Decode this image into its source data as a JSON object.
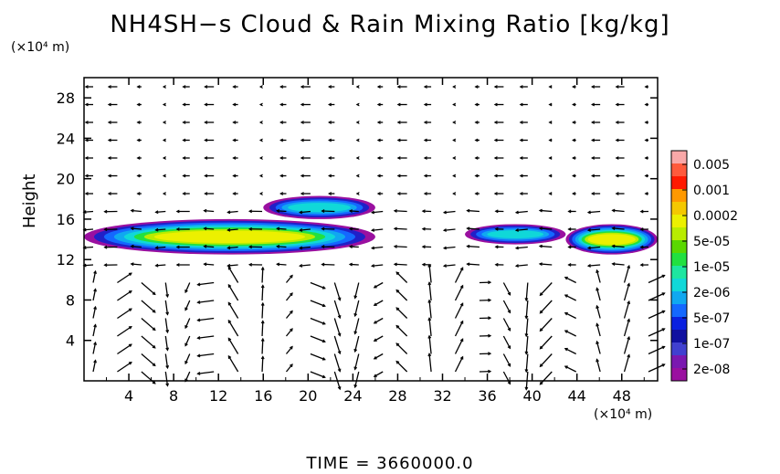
{
  "chart_data": {
    "type": "heatmap",
    "title": "NH4SH−s Cloud & Rain Mixing Ratio [kg/kg]",
    "ylabel": "Height",
    "x_multiplier": "(×10⁴ m)",
    "y_multiplier": "(×10⁴ m)",
    "x_ticks": [
      "4",
      "8",
      "12",
      "16",
      "20",
      "24",
      "28",
      "32",
      "36",
      "40",
      "44",
      "48"
    ],
    "y_ticks": [
      "4",
      "8",
      "12",
      "16",
      "20",
      "24",
      "28"
    ],
    "xlim": [
      0,
      51.2
    ],
    "ylim": [
      0,
      30
    ],
    "colorbar": {
      "labels": [
        "0.005",
        "0.001",
        "0.0002",
        "5e-05",
        "1e-05",
        "2e-06",
        "5e-07",
        "1e-07",
        "2e-08"
      ],
      "colors": [
        "#f9a8a8",
        "#ff5a3c",
        "#ff1a00",
        "#ff9900",
        "#f4c800",
        "#ecf000",
        "#b8ec00",
        "#5ad800",
        "#22e040",
        "#1ee6a0",
        "#10d8d8",
        "#10a8f0",
        "#1468ff",
        "#0a20e0",
        "#1010a0",
        "#4040d0",
        "#7a18b0",
        "#9a10a0"
      ]
    },
    "cloud_layers": [
      {
        "x": [
          0,
          26
        ],
        "y": [
          12.5,
          16
        ],
        "peak": "5e-05"
      },
      {
        "x": [
          16,
          26
        ],
        "y": [
          16,
          18.3
        ],
        "peak": "2e-06"
      },
      {
        "x": [
          34,
          43
        ],
        "y": [
          13.5,
          15.5
        ],
        "peak": "2e-06"
      },
      {
        "x": [
          43,
          51.2
        ],
        "y": [
          12.5,
          15.5
        ],
        "peak": "5e-05"
      }
    ],
    "overlay": "wind vectors"
  },
  "footer": {
    "time": "TIME  =  3660000.0"
  }
}
